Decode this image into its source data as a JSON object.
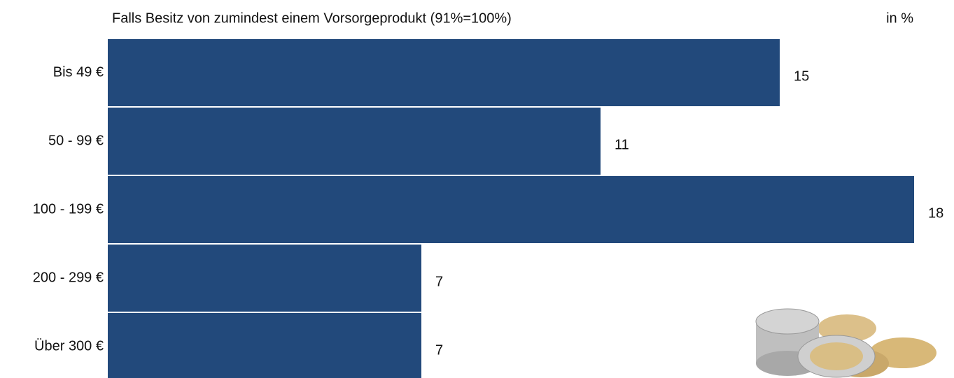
{
  "chart_data": {
    "type": "bar",
    "orientation": "horizontal",
    "title": "Falls Besitz von zumindest einem Vorsorgeprodukt (91%=100%)",
    "unit_label": "in %",
    "categories": [
      "Bis 49 €",
      "50 - 99 €",
      "100 - 199 €",
      "200 - 299 €",
      "Über 300 €"
    ],
    "values": [
      15,
      11,
      18,
      7,
      7
    ],
    "color": "#22497b"
  }
}
